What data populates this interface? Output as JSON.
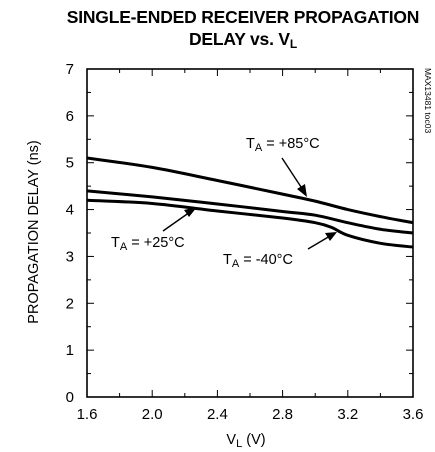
{
  "title": {
    "line1": "SINGLE-ENDED RECEIVER PROPAGATION",
    "line2_main": "DELAY vs. V",
    "line2_sub": "L"
  },
  "watermark": "MAX13481 toc03",
  "chart_data": {
    "type": "line",
    "title": "SINGLE-ENDED RECEIVER PROPAGATION DELAY vs. VL",
    "xlabel": {
      "main": "V",
      "sub": "L",
      "unit": " (V)"
    },
    "ylabel": "PROPAGATION DELAY (ns)",
    "xlim": [
      1.6,
      3.6
    ],
    "ylim": [
      0,
      7
    ],
    "x_ticks": [
      "1.6",
      "2.0",
      "2.4",
      "2.8",
      "3.2",
      "3.6"
    ],
    "y_ticks": [
      "0",
      "1",
      "2",
      "3",
      "4",
      "5",
      "6",
      "7"
    ],
    "grid": false,
    "series": [
      {
        "name": "TA = +85°C",
        "label": {
          "main": "T",
          "sub": "A",
          "rest": " = +85°C"
        },
        "color": "#000000",
        "x": [
          1.6,
          2.0,
          2.4,
          2.8,
          3.0,
          3.2,
          3.4,
          3.6
        ],
        "y": [
          5.1,
          4.9,
          4.62,
          4.33,
          4.18,
          4.0,
          3.85,
          3.72
        ]
      },
      {
        "name": "TA = +25°C",
        "label": {
          "main": "T",
          "sub": "A",
          "rest": " = +25°C"
        },
        "color": "#000000",
        "x": [
          1.6,
          2.0,
          2.4,
          2.8,
          3.0,
          3.2,
          3.4,
          3.6
        ],
        "y": [
          4.4,
          4.27,
          4.12,
          3.96,
          3.88,
          3.72,
          3.58,
          3.5
        ]
      },
      {
        "name": "TA = -40°C",
        "label": {
          "main": "T",
          "sub": "A",
          "rest": " = -40°C"
        },
        "color": "#000000",
        "x": [
          1.6,
          2.0,
          2.4,
          2.8,
          3.0,
          3.1,
          3.2,
          3.4,
          3.6
        ],
        "y": [
          4.2,
          4.13,
          3.97,
          3.82,
          3.72,
          3.62,
          3.45,
          3.28,
          3.2
        ]
      }
    ]
  }
}
